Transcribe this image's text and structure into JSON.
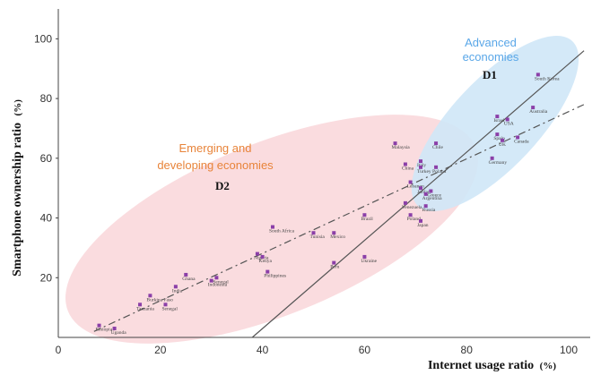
{
  "chart_data": {
    "type": "scatter",
    "xlabel": "Internet usage ratio",
    "xunit": "(%)",
    "ylabel": "Smartphone ownership ratio",
    "yunit": "(%)",
    "xlim": [
      0,
      103
    ],
    "ylim": [
      0,
      110
    ],
    "xticks": [
      0,
      20,
      40,
      60,
      80,
      100
    ],
    "yticks": [
      20,
      40,
      60,
      80,
      100
    ],
    "grid": false,
    "point_color": "#8b3fa8",
    "points": [
      {
        "label": "Ethiopia",
        "x": 8,
        "y": 4
      },
      {
        "label": "Uganda",
        "x": 11,
        "y": 3
      },
      {
        "label": "Burkina Faso",
        "x": 18,
        "y": 14
      },
      {
        "label": "Tanzania",
        "x": 16,
        "y": 11
      },
      {
        "label": "Senegal",
        "x": 21,
        "y": 11
      },
      {
        "label": "India",
        "x": 23,
        "y": 17
      },
      {
        "label": "Ghana",
        "x": 25,
        "y": 21
      },
      {
        "label": "Indonesia",
        "x": 30,
        "y": 19
      },
      {
        "label": "Senegal",
        "x": 31,
        "y": 20
      },
      {
        "label": "Nigeria",
        "x": 39,
        "y": 28
      },
      {
        "label": "Kenya",
        "x": 40,
        "y": 27
      },
      {
        "label": "Philippines",
        "x": 41,
        "y": 22
      },
      {
        "label": "South Africa",
        "x": 42,
        "y": 37
      },
      {
        "label": "Tunisia",
        "x": 50,
        "y": 35
      },
      {
        "label": "Mexico",
        "x": 54,
        "y": 35
      },
      {
        "label": "Peru",
        "x": 54,
        "y": 25
      },
      {
        "label": "Brazil",
        "x": 60,
        "y": 41
      },
      {
        "label": "Ukraine",
        "x": 60,
        "y": 27
      },
      {
        "label": "Malaysia",
        "x": 66,
        "y": 65
      },
      {
        "label": "Chile",
        "x": 74,
        "y": 65
      },
      {
        "label": "China",
        "x": 68,
        "y": 58
      },
      {
        "label": "Italy",
        "x": 71,
        "y": 59
      },
      {
        "label": "Turkey",
        "x": 71,
        "y": 57
      },
      {
        "label": "Poland",
        "x": 74,
        "y": 57
      },
      {
        "label": "Lebanon",
        "x": 69,
        "y": 52
      },
      {
        "label": "Jordan",
        "x": 71,
        "y": 50
      },
      {
        "label": "Argentina",
        "x": 72,
        "y": 48
      },
      {
        "label": "Greece",
        "x": 73,
        "y": 49
      },
      {
        "label": "Venezuela",
        "x": 68,
        "y": 45
      },
      {
        "label": "Russia",
        "x": 72,
        "y": 44
      },
      {
        "label": "Poland",
        "x": 69,
        "y": 41
      },
      {
        "label": "Japan",
        "x": 71,
        "y": 39
      },
      {
        "label": "South Korea",
        "x": 94,
        "y": 88
      },
      {
        "label": "Israel",
        "x": 86,
        "y": 74
      },
      {
        "label": "Australia",
        "x": 93,
        "y": 77
      },
      {
        "label": "USA",
        "x": 88,
        "y": 73
      },
      {
        "label": "Spain",
        "x": 86,
        "y": 68
      },
      {
        "label": "UK",
        "x": 87,
        "y": 66
      },
      {
        "label": "Canada",
        "x": 90,
        "y": 67
      },
      {
        "label": "Germany",
        "x": 85,
        "y": 60
      }
    ],
    "regions": [
      {
        "name": "Advanced economies",
        "code": "D1",
        "color": "#5aa7e8",
        "fill": "#cfe7f7"
      },
      {
        "name": "Emerging and developing economies",
        "code": "D2",
        "color": "#e8843a",
        "fill": "#f9d6d9"
      }
    ],
    "lines": [
      {
        "style": "solid",
        "from": [
          38,
          0
        ],
        "to": [
          103,
          96
        ]
      },
      {
        "style": "dashed",
        "from": [
          7,
          2
        ],
        "to": [
          103,
          78
        ]
      }
    ]
  },
  "labels": {
    "d1_line1": "Advanced",
    "d1_line2": "economies",
    "d1_code": "D1",
    "d2_line1": "Emerging and",
    "d2_line2": "developing economies",
    "d2_code": "D2"
  }
}
